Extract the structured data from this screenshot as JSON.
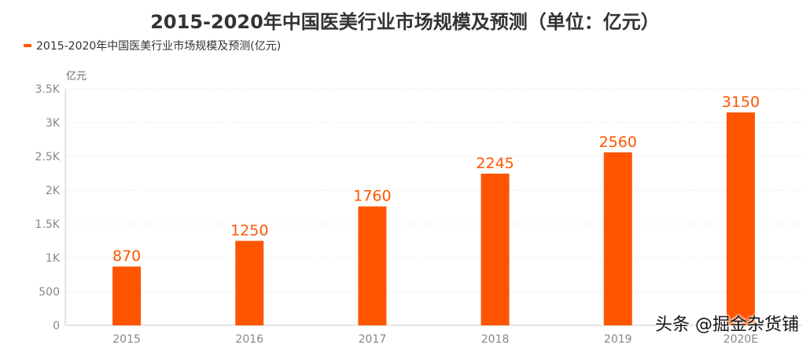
{
  "chart_data": {
    "type": "bar",
    "title": "2015-2020年中国医美行业市场规模及预测（单位：亿元）",
    "unit_label": "亿元",
    "categories": [
      "2015",
      "2016",
      "2017",
      "2018",
      "2019",
      "2020E"
    ],
    "series": [
      {
        "name": "2015-2020年中国医美行业市场规模及预测(亿元)",
        "values": [
          870,
          1250,
          1760,
          2245,
          2560,
          3150
        ]
      }
    ],
    "ylim": [
      0,
      3500
    ],
    "yticks": [
      0,
      500,
      1000,
      1500,
      2000,
      2500,
      3000,
      3500
    ],
    "ytick_labels": [
      "0",
      "500",
      "1K",
      "1.5K",
      "2K",
      "2.5K",
      "3K",
      "3.5K"
    ],
    "grid": true,
    "legend_position": "top-left",
    "colors": {
      "bar": "#FF5500",
      "data_label": "#FF5500",
      "grid": "#e9e9e9",
      "axis": "#cccccc"
    }
  },
  "watermark": "头条 @掘金杂货铺"
}
